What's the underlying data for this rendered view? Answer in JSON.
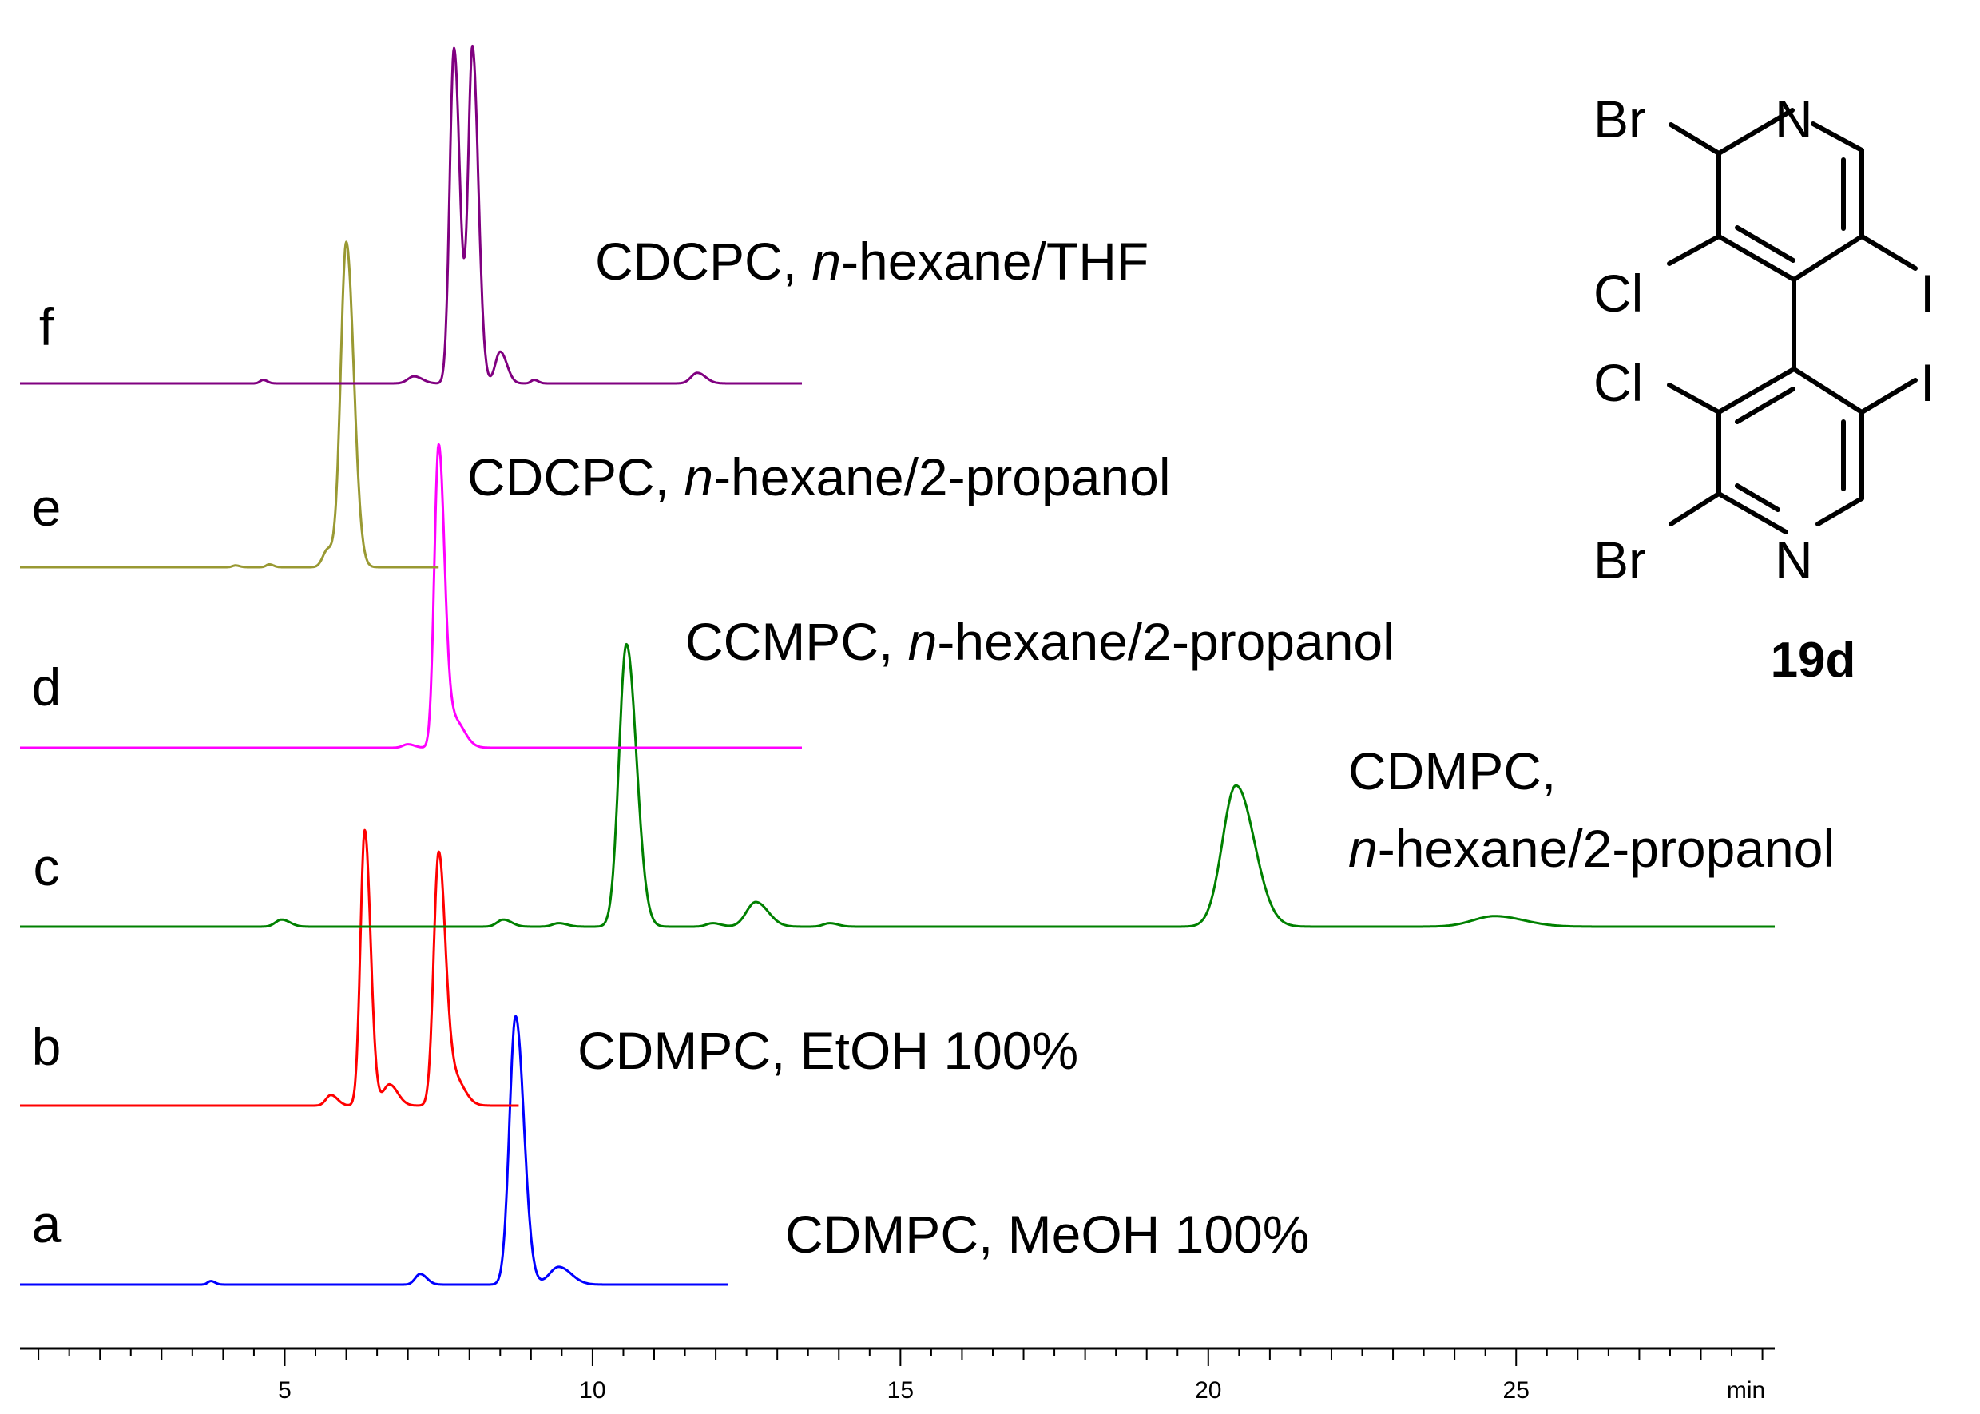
{
  "chart_data": {
    "type": "line",
    "title": "",
    "xlabel": "",
    "x_unit": "min",
    "ylabel": "",
    "xlim": [
      0.7,
      29.2
    ],
    "x_ticks": [
      5,
      10,
      15,
      20,
      25
    ],
    "grid": false,
    "legend": "none",
    "traces": [
      {
        "label": "a",
        "condition": [
          "CDMPC, MeOH 100%"
        ],
        "color": "#0000ff",
        "x_range": [
          0.7,
          12.2
        ],
        "peaks": [
          {
            "rt": 3.8,
            "height": 0.01,
            "width": 0.05
          },
          {
            "rt": 7.2,
            "height": 0.03,
            "width": 0.08
          },
          {
            "rt": 8.75,
            "height": 0.76,
            "width": 0.1
          },
          {
            "rt": 9.45,
            "height": 0.05,
            "width": 0.15
          }
        ]
      },
      {
        "label": "b",
        "condition": [
          "CDMPC, EtOH 100%"
        ],
        "color": "#ff0000",
        "x_range": [
          0.7,
          8.8
        ],
        "peaks": [
          {
            "rt": 5.75,
            "height": 0.03,
            "width": 0.08
          },
          {
            "rt": 6.3,
            "height": 0.78,
            "width": 0.07
          },
          {
            "rt": 6.7,
            "height": 0.06,
            "width": 0.1
          },
          {
            "rt": 7.5,
            "height": 0.71,
            "width": 0.08
          },
          {
            "rt": 7.75,
            "height": 0.08,
            "width": 0.12
          }
        ]
      },
      {
        "label": "c",
        "condition": [
          "CDMPC,",
          "n-hexane/2-propanol"
        ],
        "color": "#008000",
        "x_range": [
          0.7,
          29.2
        ],
        "peaks": [
          {
            "rt": 4.95,
            "height": 0.02,
            "width": 0.1
          },
          {
            "rt": 8.55,
            "height": 0.02,
            "width": 0.1
          },
          {
            "rt": 9.45,
            "height": 0.01,
            "width": 0.1
          },
          {
            "rt": 10.55,
            "height": 0.8,
            "width": 0.12
          },
          {
            "rt": 11.95,
            "height": 0.01,
            "width": 0.1
          },
          {
            "rt": 12.65,
            "height": 0.07,
            "width": 0.15
          },
          {
            "rt": 13.85,
            "height": 0.01,
            "width": 0.1
          },
          {
            "rt": 20.45,
            "height": 0.4,
            "width": 0.22
          },
          {
            "rt": 24.65,
            "height": 0.03,
            "width": 0.35
          }
        ]
      },
      {
        "label": "d",
        "condition": [
          "CCMPC, n-hexane/2-propanol"
        ],
        "color": "#ff00ff",
        "x_range": [
          0.7,
          13.4
        ],
        "peaks": [
          {
            "rt": 7.0,
            "height": 0.01,
            "width": 0.08
          },
          {
            "rt": 7.5,
            "height": 0.85,
            "width": 0.07
          },
          {
            "rt": 7.75,
            "height": 0.08,
            "width": 0.12
          }
        ]
      },
      {
        "label": "e",
        "condition": [
          "CDCPC, n-hexane/2-propanol"
        ],
        "color": "#999933",
        "x_range": [
          0.7,
          7.5
        ],
        "peaks": [
          {
            "rt": 4.2,
            "height": 0.005,
            "width": 0.05
          },
          {
            "rt": 4.75,
            "height": 0.008,
            "width": 0.05
          },
          {
            "rt": 5.7,
            "height": 0.05,
            "width": 0.08
          },
          {
            "rt": 6.0,
            "height": 0.92,
            "width": 0.09
          }
        ]
      },
      {
        "label": "f",
        "condition": [
          "CDCPC, n-hexane/THF"
        ],
        "color": "#800080",
        "x_range": [
          0.7,
          13.4
        ],
        "peaks": [
          {
            "rt": 4.65,
            "height": 0.01,
            "width": 0.05
          },
          {
            "rt": 7.1,
            "height": 0.02,
            "width": 0.1
          },
          {
            "rt": 7.75,
            "height": 0.95,
            "width": 0.07
          },
          {
            "rt": 8.05,
            "height": 0.95,
            "width": 0.07
          },
          {
            "rt": 8.5,
            "height": 0.09,
            "width": 0.08
          },
          {
            "rt": 9.05,
            "height": 0.01,
            "width": 0.05
          },
          {
            "rt": 11.7,
            "height": 0.03,
            "width": 0.1
          }
        ]
      }
    ]
  },
  "structure": {
    "atoms": {
      "br_top": "Br",
      "n_top": "N",
      "cl_upper": "Cl",
      "i_upper": "I",
      "cl_lower": "Cl",
      "i_lower": "I",
      "br_bottom": "Br",
      "n_bottom": "N"
    },
    "compound_label": "19d"
  }
}
